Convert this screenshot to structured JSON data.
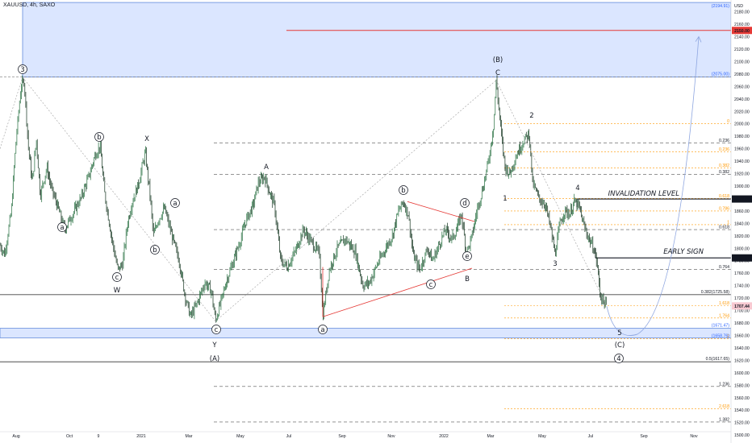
{
  "header": {
    "symbol": "XAUUSD, 4h, SAXO",
    "currency": "USD"
  },
  "colors": {
    "candle": "#1f6b3a",
    "zone": "#dbe6ff",
    "zone_border": "#4f7cd6",
    "red_line": "#e53935",
    "fib": "#ff9800",
    "text": "#131722"
  },
  "chart_data": {
    "type": "candlestick",
    "title": "XAUUSD, 4h, SAXO",
    "y_unit": "USD",
    "ylim": [
      1495,
      2195
    ],
    "x_tick_labels": [
      "Aug",
      "Oct",
      "9",
      "2021",
      "Mar",
      "May",
      "Jul",
      "Sep",
      "Nov",
      "2022",
      "Mar",
      "May",
      "Jul",
      "Sep",
      "Nov"
    ],
    "y_tick_labels": [
      1500,
      1520,
      1540,
      1560,
      1580,
      1600,
      1620,
      1640,
      1660,
      1680,
      1700,
      1720,
      1740,
      1760,
      1780,
      1800,
      1820,
      1840,
      1860,
      1880,
      1900,
      1920,
      1940,
      1960,
      1980,
      2000,
      2020,
      2040,
      2060,
      2080,
      2100,
      2120,
      2140,
      2160,
      2180
    ],
    "price_path": [
      [
        0,
        1805
      ],
      [
        6,
        1790
      ],
      [
        14,
        1860
      ],
      [
        20,
        1975
      ],
      [
        26,
        2060
      ],
      [
        30,
        2070
      ],
      [
        35,
        1965
      ],
      [
        40,
        1905
      ],
      [
        45,
        1975
      ],
      [
        50,
        1885
      ],
      [
        58,
        1930
      ],
      [
        64,
        1895
      ],
      [
        72,
        1865
      ],
      [
        80,
        1830
      ],
      [
        90,
        1855
      ],
      [
        100,
        1880
      ],
      [
        110,
        1915
      ],
      [
        118,
        1950
      ],
      [
        124,
        1965
      ],
      [
        130,
        1885
      ],
      [
        138,
        1820
      ],
      [
        146,
        1765
      ],
      [
        152,
        1775
      ],
      [
        158,
        1840
      ],
      [
        164,
        1875
      ],
      [
        172,
        1905
      ],
      [
        180,
        1955
      ],
      [
        186,
        1885
      ],
      [
        190,
        1820
      ],
      [
        196,
        1845
      ],
      [
        204,
        1865
      ],
      [
        212,
        1825
      ],
      [
        222,
        1780
      ],
      [
        230,
        1720
      ],
      [
        236,
        1690
      ],
      [
        242,
        1705
      ],
      [
        246,
        1718
      ],
      [
        254,
        1745
      ],
      [
        262,
        1732
      ],
      [
        267,
        1683
      ],
      [
        272,
        1705
      ],
      [
        280,
        1745
      ],
      [
        288,
        1775
      ],
      [
        296,
        1805
      ],
      [
        305,
        1845
      ],
      [
        314,
        1870
      ],
      [
        320,
        1905
      ],
      [
        328,
        1915
      ],
      [
        334,
        1890
      ],
      [
        340,
        1870
      ],
      [
        348,
        1780
      ],
      [
        356,
        1770
      ],
      [
        366,
        1795
      ],
      [
        376,
        1830
      ],
      [
        386,
        1810
      ],
      [
        396,
        1790
      ],
      [
        400,
        1690
      ],
      [
        408,
        1765
      ],
      [
        418,
        1800
      ],
      [
        428,
        1815
      ],
      [
        440,
        1795
      ],
      [
        450,
        1740
      ],
      [
        458,
        1745
      ],
      [
        466,
        1770
      ],
      [
        476,
        1795
      ],
      [
        486,
        1820
      ],
      [
        494,
        1860
      ],
      [
        500,
        1875
      ],
      [
        506,
        1855
      ],
      [
        512,
        1790
      ],
      [
        520,
        1765
      ],
      [
        530,
        1800
      ],
      [
        536,
        1780
      ],
      [
        544,
        1805
      ],
      [
        552,
        1830
      ],
      [
        560,
        1815
      ],
      [
        566,
        1830
      ],
      [
        572,
        1855
      ],
      [
        578,
        1790
      ],
      [
        584,
        1815
      ],
      [
        592,
        1865
      ],
      [
        600,
        1905
      ],
      [
        606,
        1945
      ],
      [
        612,
        2000
      ],
      [
        615,
        2070
      ],
      [
        620,
        2000
      ],
      [
        626,
        1930
      ],
      [
        632,
        1920
      ],
      [
        640,
        1950
      ],
      [
        650,
        1975
      ],
      [
        656,
        1985
      ],
      [
        660,
        1905
      ],
      [
        668,
        1880
      ],
      [
        676,
        1870
      ],
      [
        682,
        1835
      ],
      [
        688,
        1790
      ],
      [
        694,
        1840
      ],
      [
        700,
        1860
      ],
      [
        706,
        1855
      ],
      [
        712,
        1875
      ],
      [
        718,
        1865
      ],
      [
        724,
        1835
      ],
      [
        730,
        1815
      ],
      [
        736,
        1800
      ],
      [
        740,
        1775
      ],
      [
        744,
        1725
      ],
      [
        750,
        1710
      ],
      [
        752,
        1707
      ]
    ],
    "levels": [
      {
        "label": "2075.00",
        "price": 2075
      },
      {
        "label": "2194.91",
        "price": 2194.91
      },
      {
        "label": "2150.00",
        "price": 2150
      },
      {
        "label": "1879.20",
        "price": 1879.2
      },
      {
        "label": "1784.57",
        "price": 1784.57
      },
      {
        "label": "1707.44",
        "price": 1707.44
      },
      {
        "label": "0.382(1725.58)",
        "price": 1725.58
      },
      {
        "label": "1671.47",
        "price": 1671.47
      },
      {
        "label": "1658.76",
        "price": 1658.76
      },
      {
        "label": "0.5(1617.65)",
        "price": 1617.65
      }
    ],
    "fib_black": [
      {
        "label": "0.236",
        "price": 1969
      },
      {
        "label": "0.382",
        "price": 1919
      },
      {
        "label": "0.618",
        "price": 1830
      },
      {
        "label": "0.764",
        "price": 1766
      },
      {
        "label": "1.236",
        "price": 1578
      },
      {
        "label": "1.382",
        "price": 1521
      }
    ],
    "fib_orange": [
      {
        "label": "0",
        "price": 2000
      },
      {
        "label": "0.236",
        "price": 1955
      },
      {
        "label": "0.382",
        "price": 1929
      },
      {
        "label": "0.618",
        "price": 1880
      },
      {
        "label": "0.786",
        "price": 1860
      },
      {
        "label": "1",
        "price": 1838
      },
      {
        "label": "1.618",
        "price": 1708
      },
      {
        "label": "1.764",
        "price": 1688
      },
      {
        "label": "2",
        "price": 1655
      },
      {
        "label": "2.618",
        "price": 1542
      }
    ]
  },
  "annotations": {
    "invalidation": "INVALIDATION LEVEL",
    "early_sign": "EARLY SIGN",
    "waves": [
      {
        "text": "3",
        "circle": true
      },
      {
        "text": "a",
        "circle": true
      },
      {
        "text": "b",
        "circle": true
      },
      {
        "text": "c",
        "circle": true
      },
      {
        "text": "W",
        "circle": false
      },
      {
        "text": "X",
        "circle": false
      },
      {
        "text": "a",
        "circle": true
      },
      {
        "text": "b",
        "circle": true
      },
      {
        "text": "c",
        "circle": true
      },
      {
        "text": "Y",
        "circle": false
      },
      {
        "text": "(A)",
        "circle": false
      },
      {
        "text": "A",
        "circle": false
      },
      {
        "text": "a",
        "circle": true
      },
      {
        "text": "b",
        "circle": true
      },
      {
        "text": "c",
        "circle": true
      },
      {
        "text": "d",
        "circle": true
      },
      {
        "text": "e",
        "circle": true
      },
      {
        "text": "B",
        "circle": false
      },
      {
        "text": "(B)",
        "circle": false
      },
      {
        "text": "C",
        "circle": false
      },
      {
        "text": "1",
        "circle": false
      },
      {
        "text": "2",
        "circle": false
      },
      {
        "text": "3",
        "circle": false
      },
      {
        "text": "4",
        "circle": false
      },
      {
        "text": "5",
        "circle": false
      },
      {
        "text": "(C)",
        "circle": false
      },
      {
        "text": "4",
        "circle": true
      }
    ]
  }
}
